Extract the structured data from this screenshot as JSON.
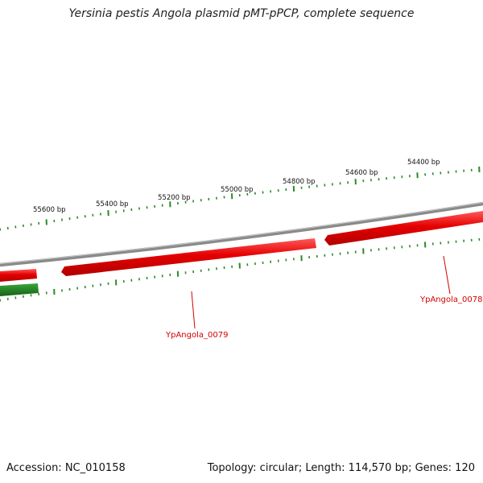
{
  "title": "Yersinia pestis Angola plasmid pMT-pPCP, complete sequence",
  "footer": {
    "accession": "Accession: NC_010158",
    "summary": "Topology: circular; Length: 114,570 bp; Genes: 120"
  },
  "scale_labels": [
    "55600 bp",
    "55400 bp",
    "55200 bp",
    "55000 bp",
    "54800 bp",
    "54600 bp",
    "54400 bp"
  ],
  "gene_labels": [
    "YpAngola_0079",
    "YpAngola_0078"
  ],
  "colors": {
    "backbone": "#8a8a8a",
    "forward_gene": "#e00000",
    "reverse_gene": "#1f7a1f",
    "ticks": "#2a8a2a",
    "label": "#d40000"
  }
}
